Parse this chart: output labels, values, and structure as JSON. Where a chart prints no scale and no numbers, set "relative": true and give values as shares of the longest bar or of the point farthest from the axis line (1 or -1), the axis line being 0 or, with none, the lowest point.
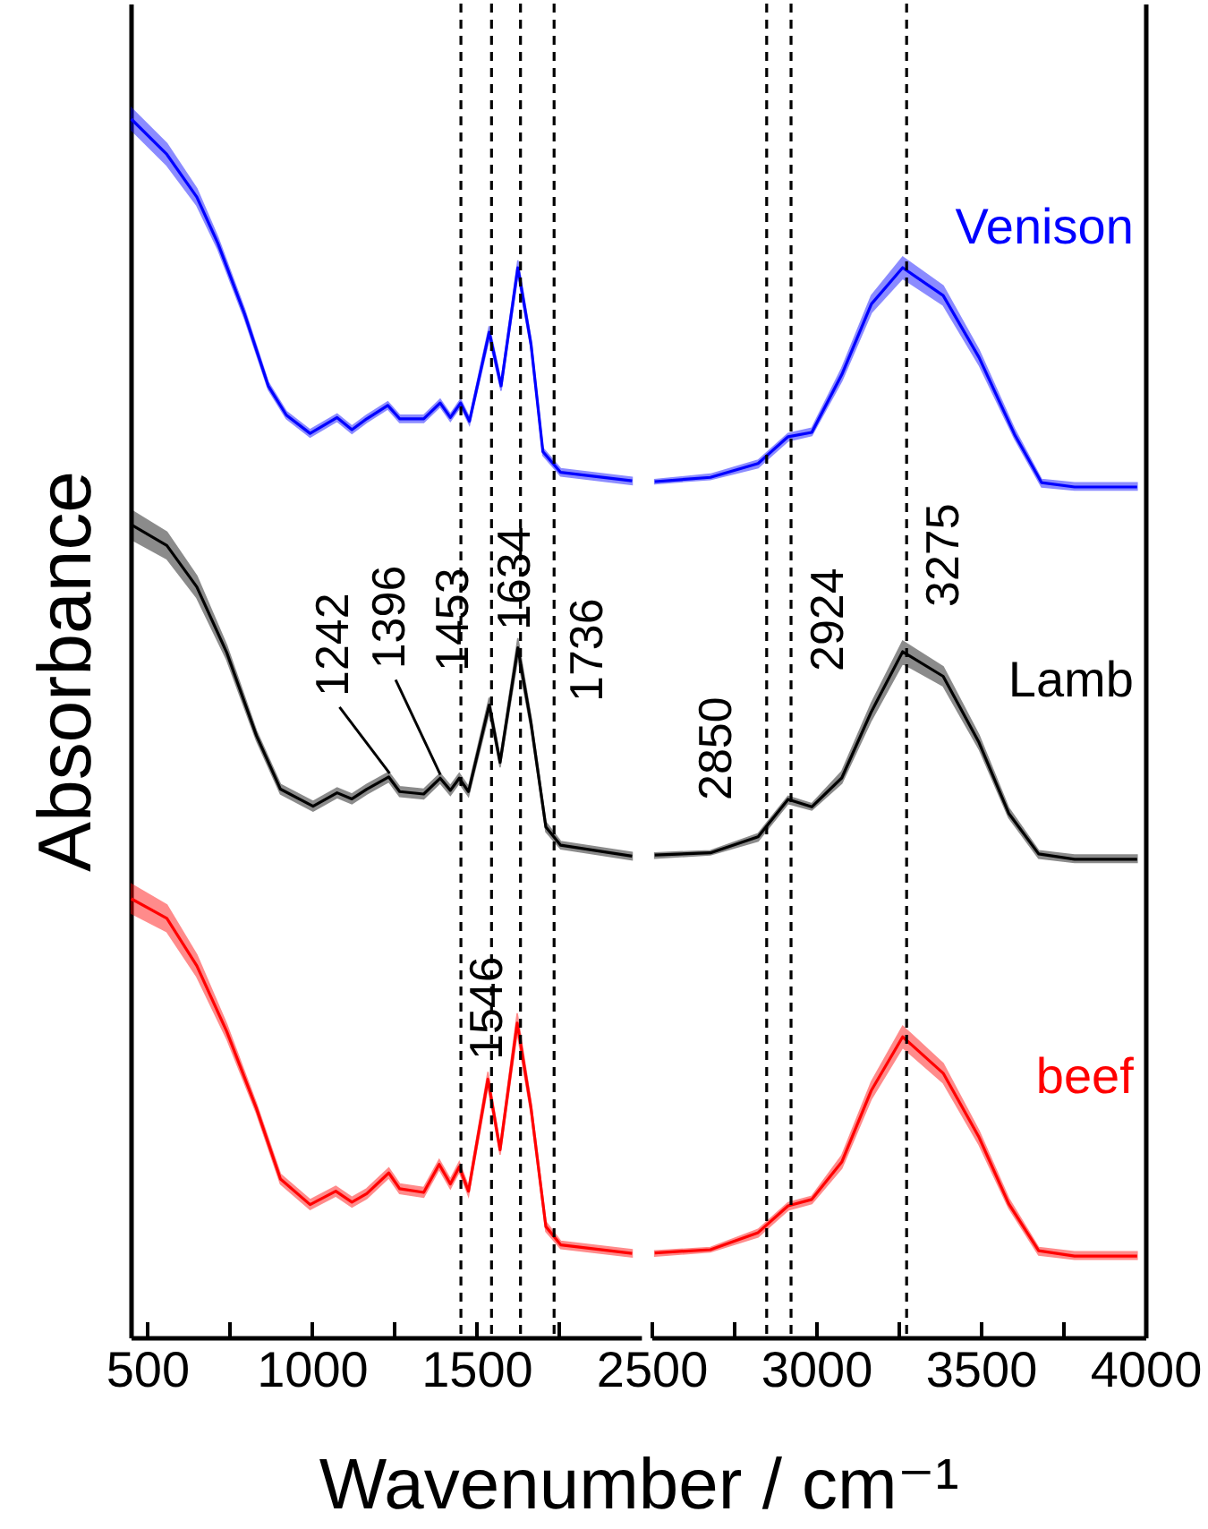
{
  "chart_data": [
    {
      "type": "line",
      "relative": true,
      "ylabel": "Absorbance",
      "xlabel": "Wavenumber / cm⁻¹",
      "xlim": [
        450,
        2000
      ],
      "xticks": [
        500,
        {
          "value": 750,
          "label": null
        },
        1000,
        {
          "value": 1250,
          "label": null
        },
        1500,
        {
          "value": 1750,
          "label": null
        }
      ],
      "series": [
        {
          "color": "#0000ff",
          "x": [
            452,
            560,
            651,
            715,
            796,
            868,
            923,
            995,
            1077,
            1122,
            1167,
            1231,
            1267,
            1340,
            1390,
            1421,
            1452,
            1479,
            1539,
            1575,
            1626,
            1666,
            1702,
            1756,
            1973
          ],
          "values": [
            1.0,
            0.971,
            0.936,
            0.898,
            0.84,
            0.781,
            0.757,
            0.742,
            0.755,
            0.745,
            0.754,
            0.765,
            0.754,
            0.754,
            0.767,
            0.755,
            0.767,
            0.752,
            0.825,
            0.781,
            0.878,
            0.815,
            0.727,
            0.71,
            0.703
          ],
          "lower": [
            0.991,
            0.962,
            0.929,
            0.893,
            0.836,
            0.778,
            0.754,
            0.739,
            0.752,
            0.742,
            0.751,
            0.762,
            0.751,
            0.751,
            0.764,
            0.752,
            0.764,
            0.749,
            0.82,
            0.777,
            0.872,
            0.811,
            0.724,
            0.707,
            0.7
          ],
          "upper": [
            1.009,
            0.98,
            0.943,
            0.903,
            0.844,
            0.784,
            0.76,
            0.745,
            0.758,
            0.748,
            0.757,
            0.768,
            0.757,
            0.757,
            0.77,
            0.758,
            0.77,
            0.755,
            0.83,
            0.785,
            0.884,
            0.819,
            0.73,
            0.713,
            0.706
          ]
        },
        {
          "color": "#000000",
          "x": [
            452,
            560,
            651,
            742,
            832,
            905,
            1004,
            1077,
            1122,
            1167,
            1234,
            1267,
            1340,
            1390,
            1421,
            1448,
            1476,
            1539,
            1572,
            1626,
            1666,
            1711,
            1756,
            1973
          ],
          "values": [
            0.667,
            0.65,
            0.616,
            0.562,
            0.494,
            0.45,
            0.436,
            0.447,
            0.442,
            0.45,
            0.46,
            0.448,
            0.446,
            0.459,
            0.449,
            0.459,
            0.448,
            0.519,
            0.472,
            0.566,
            0.504,
            0.419,
            0.404,
            0.395
          ],
          "lower": [
            0.655,
            0.639,
            0.607,
            0.556,
            0.49,
            0.446,
            0.432,
            0.443,
            0.438,
            0.446,
            0.456,
            0.444,
            0.442,
            0.455,
            0.445,
            0.455,
            0.444,
            0.513,
            0.468,
            0.558,
            0.499,
            0.415,
            0.401,
            0.392
          ],
          "upper": [
            0.679,
            0.661,
            0.625,
            0.568,
            0.498,
            0.454,
            0.44,
            0.451,
            0.446,
            0.454,
            0.464,
            0.452,
            0.45,
            0.463,
            0.453,
            0.463,
            0.452,
            0.525,
            0.476,
            0.574,
            0.509,
            0.423,
            0.407,
            0.398
          ]
        },
        {
          "color": "#ff0000",
          "x": [
            452,
            560,
            651,
            742,
            832,
            905,
            995,
            1073,
            1122,
            1167,
            1234,
            1267,
            1340,
            1387,
            1421,
            1448,
            1476,
            1535,
            1572,
            1624,
            1666,
            1711,
            1756,
            1973
          ],
          "values": [
            0.36,
            0.344,
            0.305,
            0.251,
            0.188,
            0.13,
            0.109,
            0.12,
            0.111,
            0.118,
            0.135,
            0.122,
            0.119,
            0.142,
            0.126,
            0.14,
            0.12,
            0.212,
            0.154,
            0.258,
            0.188,
            0.091,
            0.076,
            0.069
          ],
          "lower": [
            0.348,
            0.333,
            0.296,
            0.245,
            0.184,
            0.126,
            0.105,
            0.116,
            0.107,
            0.114,
            0.131,
            0.118,
            0.115,
            0.138,
            0.122,
            0.136,
            0.116,
            0.206,
            0.15,
            0.25,
            0.183,
            0.087,
            0.073,
            0.066
          ],
          "upper": [
            0.372,
            0.355,
            0.314,
            0.257,
            0.192,
            0.134,
            0.113,
            0.124,
            0.115,
            0.122,
            0.139,
            0.126,
            0.123,
            0.146,
            0.13,
            0.144,
            0.124,
            0.218,
            0.158,
            0.266,
            0.193,
            0.095,
            0.079,
            0.072
          ]
        }
      ],
      "ref_lines": [
        {
          "axis": "x",
          "value": 1453,
          "label": "1453",
          "line_style": "dashed"
        },
        {
          "axis": "x",
          "value": 1546,
          "label": "1546",
          "line_style": "dashed"
        },
        {
          "axis": "x",
          "value": 1634,
          "label": "1634",
          "line_style": "dashed"
        },
        {
          "axis": "x",
          "value": 1736,
          "label": "1736",
          "line_style": "dashed"
        }
      ],
      "annotations": [
        {
          "text": "1242",
          "x": 1242,
          "y": 0.46
        },
        {
          "text": "1396",
          "x": 1396,
          "y": 0.459
        }
      ]
    },
    {
      "type": "line",
      "relative": true,
      "xlim": [
        2500,
        4000
      ],
      "xticks": [
        2500,
        {
          "value": 2750,
          "label": null
        },
        3000,
        {
          "value": 3250,
          "label": null
        },
        3500,
        {
          "value": 3750,
          "label": null
        },
        4000
      ],
      "series": [
        {
          "name": "Venison",
          "color": "#0000ff",
          "x": [
            2510,
            2679,
            2824,
            2915,
            2987,
            3078,
            3168,
            3263,
            3386,
            3495,
            3603,
            3685,
            3785,
            3975
          ],
          "values": [
            0.8,
            0.804,
            0.817,
            0.842,
            0.846,
            0.9,
            0.966,
            1.0,
            0.974,
            0.916,
            0.844,
            0.799,
            0.795,
            0.795
          ],
          "lower": [
            0.798,
            0.802,
            0.813,
            0.838,
            0.843,
            0.894,
            0.958,
            0.99,
            0.965,
            0.909,
            0.84,
            0.795,
            0.792,
            0.792
          ],
          "upper": [
            0.802,
            0.807,
            0.82,
            0.845,
            0.85,
            0.906,
            0.974,
            1.01,
            0.983,
            0.923,
            0.849,
            0.802,
            0.799,
            0.799
          ]
        },
        {
          "name": "Lamb",
          "color": "#000000",
          "x": [
            2510,
            2679,
            2824,
            2915,
            2987,
            3078,
            3168,
            3263,
            3386,
            3495,
            3585,
            3676,
            3785,
            3975
          ],
          "values": [
            0.451,
            0.453,
            0.468,
            0.503,
            0.496,
            0.523,
            0.585,
            0.641,
            0.618,
            0.556,
            0.49,
            0.452,
            0.447,
            0.447
          ],
          "lower": [
            0.448,
            0.451,
            0.464,
            0.499,
            0.493,
            0.518,
            0.577,
            0.63,
            0.609,
            0.55,
            0.486,
            0.448,
            0.444,
            0.444
          ],
          "upper": [
            0.453,
            0.455,
            0.471,
            0.506,
            0.499,
            0.529,
            0.593,
            0.651,
            0.627,
            0.563,
            0.495,
            0.455,
            0.451,
            0.451
          ]
        },
        {
          "name": "beef",
          "color": "#ff0000",
          "x": [
            2510,
            2679,
            2824,
            2915,
            2987,
            3078,
            3168,
            3263,
            3386,
            3495,
            3585,
            3676,
            3785,
            3975
          ],
          "values": [
            0.079,
            0.082,
            0.098,
            0.123,
            0.129,
            0.164,
            0.231,
            0.281,
            0.247,
            0.187,
            0.125,
            0.081,
            0.076,
            0.076
          ],
          "lower": [
            0.076,
            0.08,
            0.094,
            0.119,
            0.125,
            0.158,
            0.223,
            0.271,
            0.238,
            0.18,
            0.121,
            0.077,
            0.073,
            0.073
          ],
          "upper": [
            0.081,
            0.084,
            0.101,
            0.126,
            0.132,
            0.17,
            0.239,
            0.291,
            0.256,
            0.193,
            0.13,
            0.084,
            0.08,
            0.08
          ]
        }
      ],
      "ref_lines": [
        {
          "axis": "x",
          "value": 2850,
          "label": "2850",
          "line_style": "dashed"
        },
        {
          "axis": "x",
          "value": 2924,
          "label": "2924",
          "line_style": "dashed"
        },
        {
          "axis": "x",
          "value": 3275,
          "label": "3275",
          "line_style": "dashed"
        }
      ]
    }
  ]
}
